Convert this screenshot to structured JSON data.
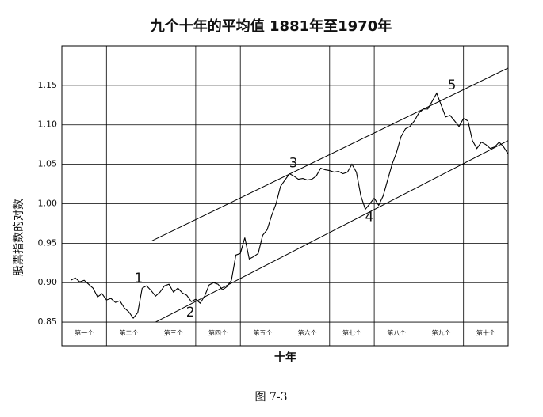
{
  "chart_data": {
    "type": "line",
    "title": "九个十年的平均值  1881年至1970年",
    "y_label": "股票指数的对数",
    "x_label": "十年",
    "caption": "图 7-3",
    "categories": [
      "第一个",
      "第二个",
      "第三个",
      "第四个",
      "第五个",
      "第六个",
      "第七个",
      "第八个",
      "第九个",
      "第十个"
    ],
    "xlim": [
      0,
      10
    ],
    "ylim": [
      0.82,
      1.2
    ],
    "yticks": [
      0.85,
      {
        "value": 0.9,
        "label": "0.90"
      },
      0.95,
      {
        "value": 1,
        "label": "1.00"
      },
      1.05,
      {
        "value": 1.1,
        "label": "1.10"
      },
      1.15
    ],
    "grid": true,
    "color": "#000000",
    "x": [
      0.2,
      0.3,
      0.4,
      0.5,
      0.6,
      0.7,
      0.8,
      0.9,
      1.0,
      1.1,
      1.2,
      1.3,
      1.4,
      1.5,
      1.6,
      1.7,
      1.8,
      1.9,
      2.0,
      2.1,
      2.2,
      2.3,
      2.4,
      2.5,
      2.6,
      2.7,
      2.8,
      2.9,
      3.0,
      3.1,
      3.2,
      3.3,
      3.4,
      3.5,
      3.6,
      3.7,
      3.8,
      3.9,
      4.0,
      4.1,
      4.2,
      4.3,
      4.4,
      4.5,
      4.6,
      4.7,
      4.8,
      4.9,
      5.0,
      5.1,
      5.2,
      5.3,
      5.4,
      5.5,
      5.6,
      5.7,
      5.8,
      5.9,
      6.0,
      6.1,
      6.2,
      6.3,
      6.4,
      6.5,
      6.6,
      6.7,
      6.8,
      6.9,
      7.0,
      7.1,
      7.2,
      7.3,
      7.4,
      7.5,
      7.6,
      7.7,
      7.8,
      7.9,
      8.0,
      8.1,
      8.2,
      8.3,
      8.4,
      8.5,
      8.6,
      8.7,
      8.8,
      8.9,
      9.0,
      9.1,
      9.2,
      9.3,
      9.4,
      9.5,
      9.6,
      9.7,
      9.8,
      9.9,
      10.0
    ],
    "values": [
      0.903,
      0.906,
      0.901,
      0.903,
      0.898,
      0.893,
      0.882,
      0.886,
      0.878,
      0.88,
      0.875,
      0.877,
      0.868,
      0.863,
      0.855,
      0.862,
      0.893,
      0.896,
      0.89,
      0.883,
      0.888,
      0.896,
      0.898,
      0.888,
      0.893,
      0.887,
      0.884,
      0.876,
      0.879,
      0.874,
      0.883,
      0.897,
      0.9,
      0.898,
      0.891,
      0.895,
      0.903,
      0.935,
      0.937,
      0.957,
      0.93,
      0.933,
      0.937,
      0.96,
      0.967,
      0.985,
      1.0,
      1.022,
      1.03,
      1.038,
      1.035,
      1.031,
      1.032,
      1.03,
      1.031,
      1.035,
      1.045,
      1.043,
      1.042,
      1.04,
      1.041,
      1.038,
      1.04,
      1.05,
      1.04,
      1.01,
      0.993,
      1.0,
      1.007,
      0.998,
      1.01,
      1.03,
      1.05,
      1.065,
      1.085,
      1.095,
      1.098,
      1.105,
      1.115,
      1.12,
      1.12,
      1.13,
      1.14,
      1.125,
      1.11,
      1.112,
      1.105,
      1.098,
      1.108,
      1.105,
      1.08,
      1.07,
      1.078,
      1.075,
      1.07,
      1.072,
      1.078,
      1.072,
      1.063
    ],
    "channel_lines": [
      {
        "x": [
          2.02,
          10
        ],
        "y": [
          0.953,
          1.172
        ]
      },
      {
        "x": [
          2.1,
          10
        ],
        "y": [
          0.85,
          1.08
        ]
      }
    ],
    "annotations": [
      {
        "label": "1",
        "x": 1.72,
        "y": 0.905
      },
      {
        "label": "2",
        "x": 2.88,
        "y": 0.862
      },
      {
        "label": "3",
        "x": 5.19,
        "y": 1.051
      },
      {
        "label": "4",
        "x": 6.89,
        "y": 0.983
      },
      {
        "label": "5",
        "x": 8.74,
        "y": 1.15
      }
    ]
  }
}
